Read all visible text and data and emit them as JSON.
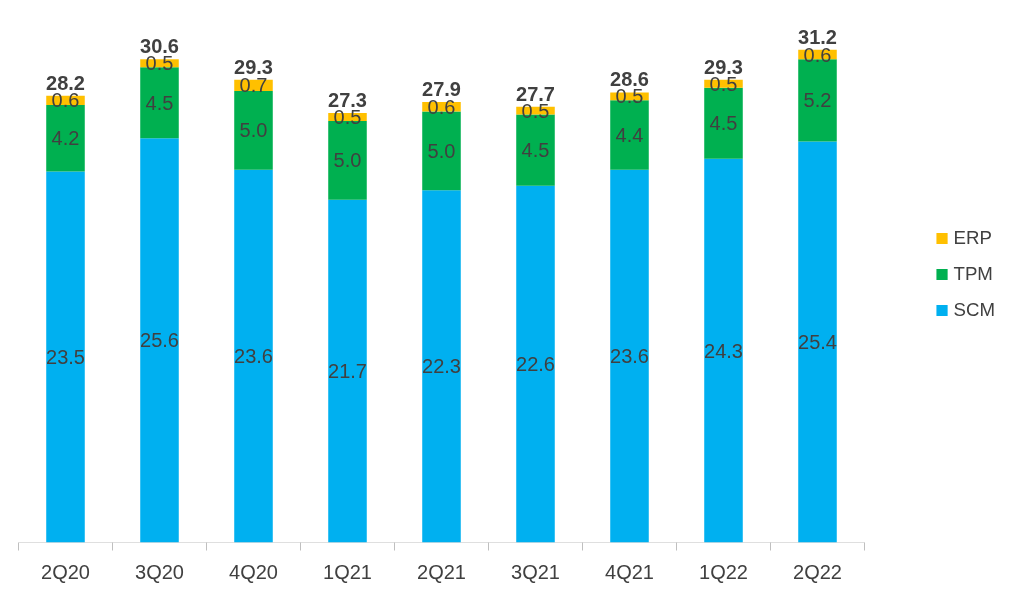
{
  "chart_data": {
    "type": "bar",
    "stacked": true,
    "categories": [
      "2Q20",
      "3Q20",
      "4Q20",
      "1Q21",
      "2Q21",
      "3Q21",
      "4Q21",
      "1Q22",
      "2Q22"
    ],
    "series": [
      {
        "name": "SCM",
        "color": "#00b0f0",
        "values": [
          23.5,
          25.6,
          23.6,
          21.7,
          22.3,
          22.6,
          23.6,
          24.3,
          25.4
        ],
        "value_labels": [
          "23.5",
          "25.6",
          "23.6",
          "21.7",
          "22.3",
          "22.6",
          "23.6",
          "24.3",
          "25.4"
        ]
      },
      {
        "name": "TPM",
        "color": "#00b050",
        "values": [
          4.2,
          4.5,
          5.0,
          5.0,
          5.0,
          4.5,
          4.4,
          4.5,
          5.2
        ],
        "value_labels": [
          "4.2",
          "4.5",
          "5.0",
          "5.0",
          "5.0",
          "4.5",
          "4.4",
          "4.5",
          "5.2"
        ]
      },
      {
        "name": "ERP",
        "color": "#ffc000",
        "values": [
          0.6,
          0.5,
          0.7,
          0.5,
          0.6,
          0.5,
          0.5,
          0.5,
          0.6
        ],
        "value_labels": [
          "0.6",
          "0.5",
          "0.7",
          "0.5",
          "0.6",
          "0.5",
          "0.5",
          "0.5",
          "0.6"
        ]
      }
    ],
    "totals": [
      "28.2",
      "30.6",
      "29.3",
      "27.3",
      "27.9",
      "27.7",
      "28.6",
      "29.3",
      "31.2"
    ],
    "legend": "right",
    "grid": false,
    "tick_labels": "x"
  }
}
